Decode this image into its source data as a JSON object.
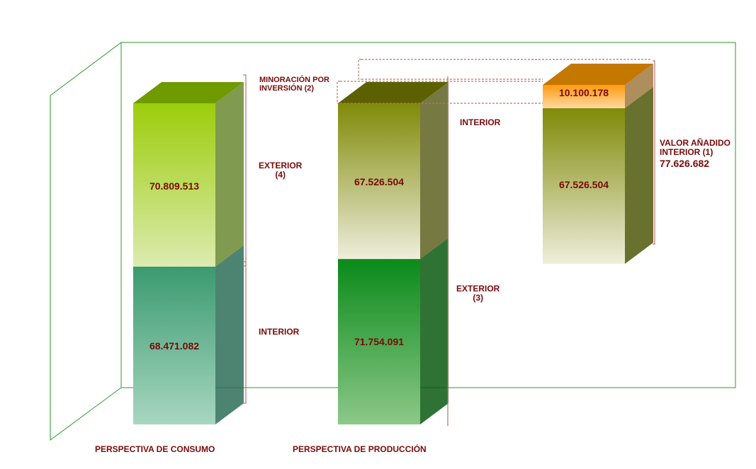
{
  "chart_data": {
    "type": "bar",
    "style": "3d-stacked",
    "categories": [
      "PERSPECTIVA DE CONSUMO",
      "PERSPECTIVA DE PRODUCCIÓN",
      ""
    ],
    "bars": [
      {
        "segments": [
          {
            "label": "INTERIOR",
            "value": 68471082,
            "display": "68.471.082",
            "color": "#3a9a70"
          },
          {
            "label": "EXTERIOR\n(4)",
            "value": 70809513,
            "display": "70.809.513",
            "color": "#9ccd0a"
          }
        ]
      },
      {
        "segments": [
          {
            "label": "EXTERIOR\n(3)",
            "value": 71754091,
            "display": "71.754.091",
            "color": "#0a8a1a"
          },
          {
            "label": "INTERIOR",
            "value": 67526504,
            "display": "67.526.504",
            "color": "#808a08"
          }
        ]
      },
      {
        "segments": [
          {
            "label": "",
            "value": 67526504,
            "display": "67.526.504",
            "color": "#808a08"
          },
          {
            "label": "",
            "value": 10100178,
            "display": "10.100.178",
            "color": "#ff9a10"
          }
        ]
      }
    ],
    "annotations": {
      "minoracion": "MINORACIÓN POR\nINVERSIÓN (2)",
      "valor_anadido": "VALOR AÑADIDO\nINTERIOR (1)",
      "valor_anadido_total": "77.626.682"
    },
    "grid": false,
    "legend": "none"
  }
}
